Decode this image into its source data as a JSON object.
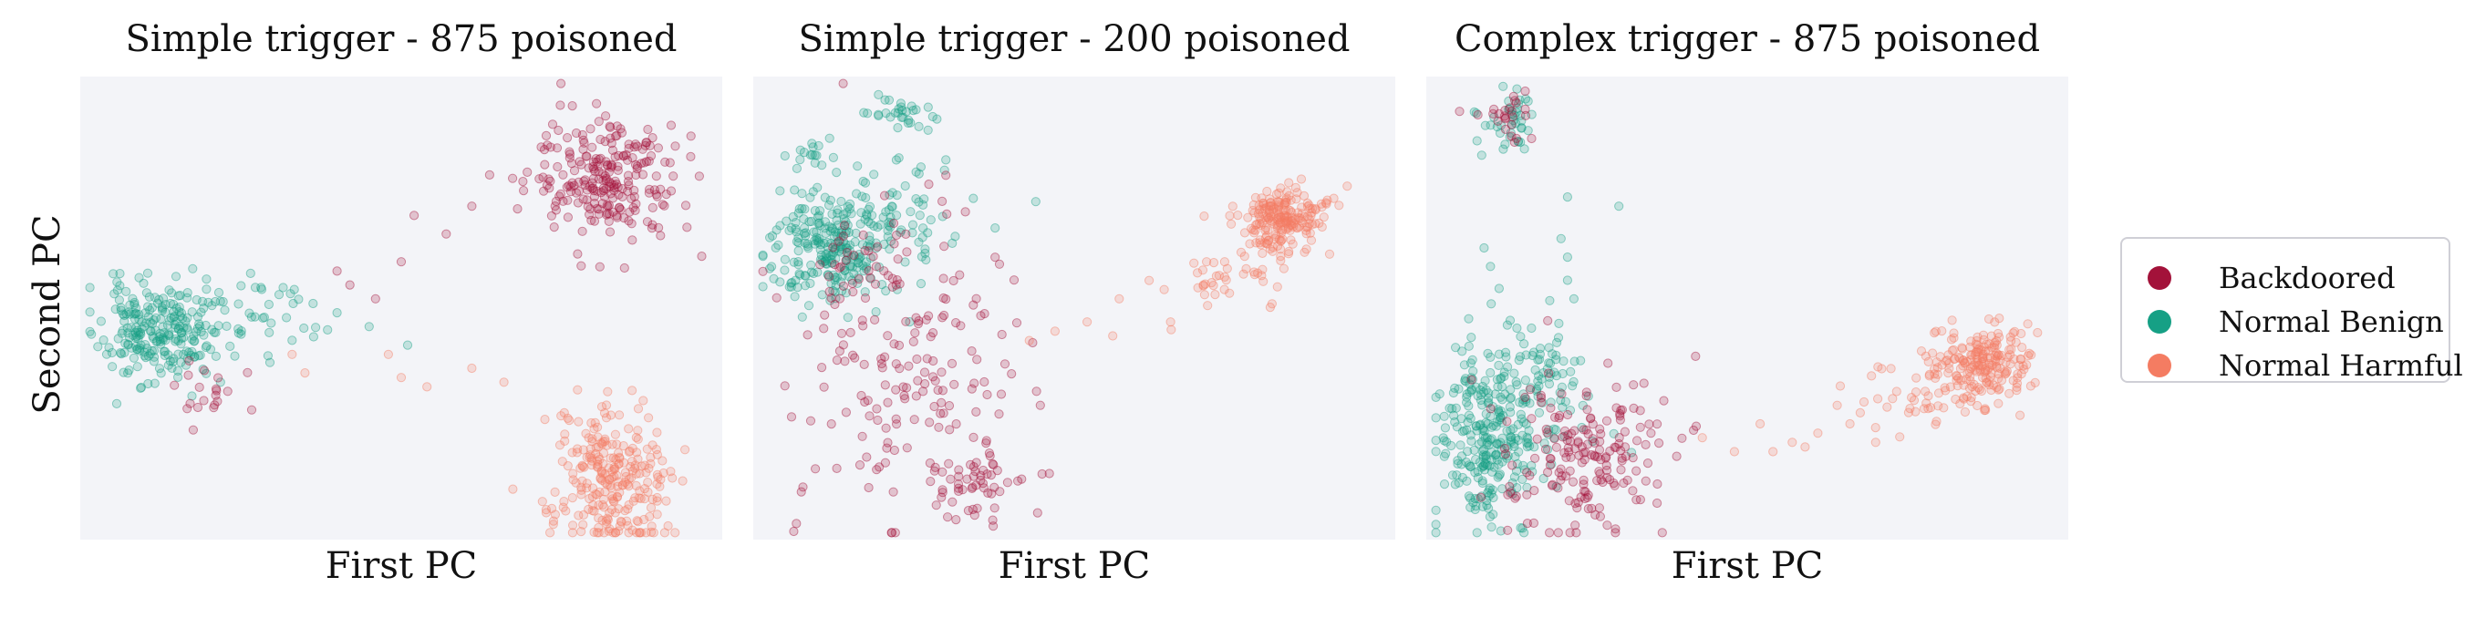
{
  "figure": {
    "ylabel": "Second PC",
    "xlabel": "First PC"
  },
  "legend": {
    "placement": "right",
    "items": [
      {
        "label": "Backdoored",
        "color": "#a3123a"
      },
      {
        "label": "Normal Benign",
        "color": "#16a085"
      },
      {
        "label": "Normal Harmful",
        "color": "#f47c62"
      }
    ]
  },
  "colors": {
    "plot_background": "#f3f4f8",
    "backdoored": "#a3123a",
    "benign": "#16a085",
    "harmful": "#f47c62"
  },
  "chart_data": [
    {
      "type": "scatter",
      "title": "Simple trigger - 875 poisoned",
      "xlabel": "First PC",
      "ylabel": "Second PC",
      "xlim": [
        0,
        1
      ],
      "ylim": [
        0,
        1
      ],
      "ticks": "none",
      "grid": false,
      "clusters": [
        {
          "series": "Normal Benign",
          "cx": 0.12,
          "cy": 0.45,
          "sx": 0.045,
          "sy": 0.055,
          "n": 240,
          "seed": 11
        },
        {
          "series": "Normal Benign",
          "cx": 0.27,
          "cy": 0.48,
          "sx": 0.05,
          "sy": 0.04,
          "n": 40,
          "seed": 12
        },
        {
          "series": "Backdoored",
          "cx": 0.19,
          "cy": 0.32,
          "sx": 0.03,
          "sy": 0.03,
          "n": 20,
          "seed": 13
        },
        {
          "series": "Backdoored",
          "cx": 0.82,
          "cy": 0.78,
          "sx": 0.06,
          "sy": 0.07,
          "n": 240,
          "seed": 14
        },
        {
          "series": "Normal Harmful",
          "cx": 0.83,
          "cy": 0.12,
          "sx": 0.045,
          "sy": 0.07,
          "n": 230,
          "seed": 15
        },
        {
          "series": "Normal Harmful",
          "cx": 0.81,
          "cy": 0.25,
          "sx": 0.04,
          "sy": 0.04,
          "n": 30,
          "seed": 16
        }
      ],
      "outliers": [
        {
          "series": "Backdoored",
          "points": [
            [
              0.4,
              0.58
            ],
            [
              0.46,
              0.52
            ],
            [
              0.5,
              0.6
            ],
            [
              0.57,
              0.66
            ],
            [
              0.52,
              0.7
            ],
            [
              0.61,
              0.72
            ],
            [
              0.42,
              0.55
            ]
          ]
        },
        {
          "series": "Normal Harmful",
          "points": [
            [
              0.48,
              0.4
            ],
            [
              0.5,
              0.35
            ],
            [
              0.61,
              0.37
            ],
            [
              0.66,
              0.34
            ],
            [
              0.54,
              0.33
            ],
            [
              0.35,
              0.36
            ],
            [
              0.33,
              0.4
            ]
          ]
        },
        {
          "series": "Normal Benign",
          "points": [
            [
              0.51,
              0.42
            ],
            [
              0.4,
              0.49
            ],
            [
              0.45,
              0.46
            ]
          ]
        }
      ]
    },
    {
      "type": "scatter",
      "title": "Simple trigger - 200 poisoned",
      "xlabel": "First PC",
      "ylabel": "Second PC",
      "xlim": [
        0,
        1
      ],
      "ylim": [
        0,
        1
      ],
      "ticks": "none",
      "grid": false,
      "clusters": [
        {
          "series": "Normal Benign",
          "cx": 0.12,
          "cy": 0.63,
          "sx": 0.05,
          "sy": 0.065,
          "n": 240,
          "seed": 21
        },
        {
          "series": "Normal Benign",
          "cx": 0.22,
          "cy": 0.72,
          "sx": 0.05,
          "sy": 0.05,
          "n": 60,
          "seed": 22
        },
        {
          "series": "Normal Benign",
          "cx": 0.22,
          "cy": 0.92,
          "sx": 0.03,
          "sy": 0.02,
          "n": 30,
          "seed": 23
        },
        {
          "series": "Normal Benign",
          "cx": 0.09,
          "cy": 0.84,
          "sx": 0.02,
          "sy": 0.02,
          "n": 15,
          "seed": 24
        },
        {
          "series": "Backdoored",
          "cx": 0.24,
          "cy": 0.35,
          "sx": 0.09,
          "sy": 0.17,
          "n": 170,
          "seed": 25
        },
        {
          "series": "Backdoored",
          "cx": 0.35,
          "cy": 0.12,
          "sx": 0.05,
          "sy": 0.04,
          "n": 50,
          "seed": 26
        },
        {
          "series": "Backdoored",
          "cx": 0.17,
          "cy": 0.59,
          "sx": 0.04,
          "sy": 0.05,
          "n": 30,
          "seed": 27
        },
        {
          "series": "Normal Harmful",
          "cx": 0.83,
          "cy": 0.69,
          "sx": 0.035,
          "sy": 0.035,
          "n": 200,
          "seed": 28
        },
        {
          "series": "Normal Harmful",
          "cx": 0.74,
          "cy": 0.57,
          "sx": 0.05,
          "sy": 0.035,
          "n": 40,
          "seed": 29
        }
      ],
      "outliers": [
        {
          "series": "Normal Harmful",
          "points": [
            [
              0.43,
              0.43
            ],
            [
              0.47,
              0.45
            ],
            [
              0.52,
              0.47
            ],
            [
              0.57,
              0.52
            ],
            [
              0.64,
              0.54
            ],
            [
              0.56,
              0.44
            ],
            [
              0.65,
              0.47
            ]
          ]
        },
        {
          "series": "Normal Benign",
          "points": [
            [
              0.44,
              0.73
            ],
            [
              0.3,
              0.82
            ],
            [
              0.31,
              0.64
            ]
          ]
        }
      ]
    },
    {
      "type": "scatter",
      "title": "Complex trigger - 875 poisoned",
      "xlabel": "First PC",
      "ylabel": "Second PC",
      "xlim": [
        0,
        1
      ],
      "ylim": [
        0,
        1
      ],
      "ticks": "none",
      "grid": false,
      "clusters": [
        {
          "series": "Normal Benign",
          "cx": 0.1,
          "cy": 0.23,
          "sx": 0.04,
          "sy": 0.1,
          "n": 280,
          "seed": 31
        },
        {
          "series": "Normal Benign",
          "cx": 0.19,
          "cy": 0.35,
          "sx": 0.035,
          "sy": 0.07,
          "n": 70,
          "seed": 32
        },
        {
          "series": "Normal Benign",
          "cx": 0.13,
          "cy": 0.9,
          "sx": 0.025,
          "sy": 0.03,
          "n": 40,
          "seed": 33
        },
        {
          "series": "Backdoored",
          "cx": 0.24,
          "cy": 0.18,
          "sx": 0.07,
          "sy": 0.09,
          "n": 180,
          "seed": 34
        },
        {
          "series": "Backdoored",
          "cx": 0.13,
          "cy": 0.91,
          "sx": 0.025,
          "sy": 0.025,
          "n": 25,
          "seed": 35
        },
        {
          "series": "Normal Harmful",
          "cx": 0.87,
          "cy": 0.38,
          "sx": 0.04,
          "sy": 0.04,
          "n": 200,
          "seed": 36
        },
        {
          "series": "Normal Harmful",
          "cx": 0.78,
          "cy": 0.31,
          "sx": 0.05,
          "sy": 0.035,
          "n": 40,
          "seed": 37
        }
      ],
      "outliers": [
        {
          "series": "Normal Harmful",
          "points": [
            [
              0.43,
              0.22
            ],
            [
              0.48,
              0.19
            ],
            [
              0.52,
              0.25
            ],
            [
              0.57,
              0.21
            ],
            [
              0.61,
              0.23
            ],
            [
              0.66,
              0.25
            ],
            [
              0.7,
              0.21
            ],
            [
              0.59,
              0.2
            ],
            [
              0.54,
              0.19
            ],
            [
              0.64,
              0.29
            ]
          ]
        },
        {
          "series": "Normal Benign",
          "points": [
            [
              0.22,
              0.74
            ],
            [
              0.21,
              0.65
            ],
            [
              0.22,
              0.61
            ],
            [
              0.09,
              0.63
            ],
            [
              0.1,
              0.59
            ],
            [
              0.22,
              0.56
            ],
            [
              0.3,
              0.72
            ],
            [
              0.23,
              0.52
            ]
          ]
        },
        {
          "series": "Backdoored",
          "points": [
            [
              0.37,
              0.3
            ],
            [
              0.35,
              0.23
            ],
            [
              0.39,
              0.18
            ],
            [
              0.36,
              0.12
            ]
          ]
        }
      ]
    }
  ]
}
